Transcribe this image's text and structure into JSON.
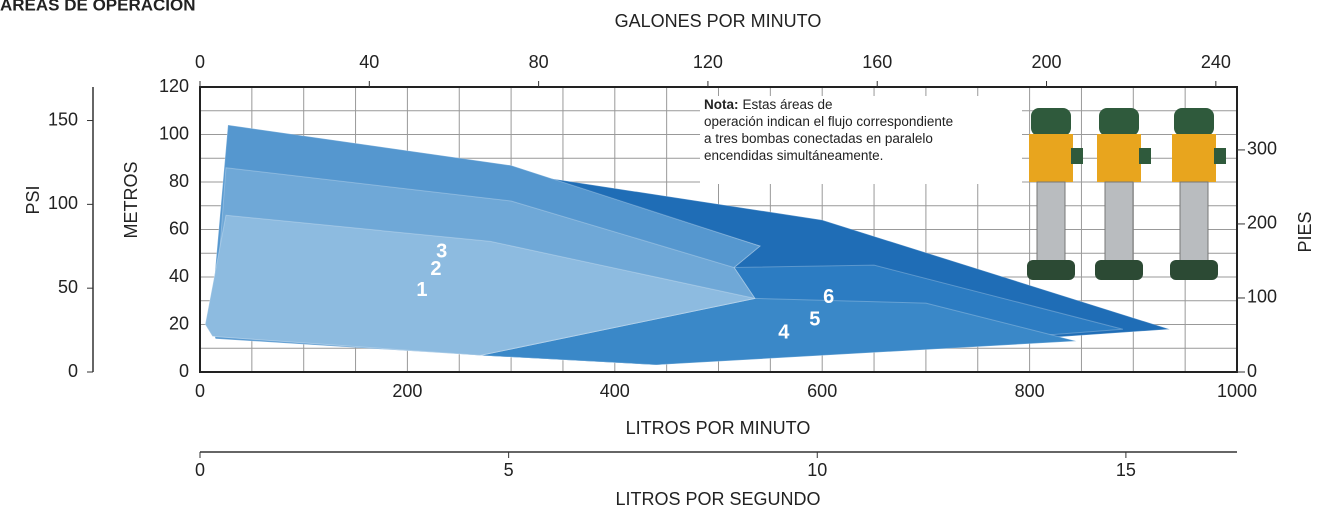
{
  "chart_data": {
    "type": "area",
    "title": "ÁREAS DE OPERACIÓN",
    "xlabel": "LITROS POR MINUTO",
    "ylabel": "METROS",
    "xlim": [
      0,
      1000
    ],
    "ylim": [
      0,
      120
    ],
    "xticks": [
      0,
      200,
      400,
      600,
      800,
      1000
    ],
    "yticks": [
      0,
      20,
      40,
      60,
      80,
      100,
      120
    ],
    "xminor": [
      50,
      100,
      150,
      250,
      300,
      350,
      450,
      500,
      550,
      650,
      700,
      750,
      850,
      900,
      950
    ],
    "yminor": [
      10,
      30,
      50,
      70,
      90,
      110
    ],
    "grid": true,
    "top_axis": {
      "label": "GALONES POR MINUTO",
      "lim": [
        0,
        245
      ],
      "ticks": [
        0,
        40,
        80,
        120,
        160,
        200,
        240
      ]
    },
    "bottom2_axis": {
      "label": "LITROS POR SEGUNDO",
      "lim": [
        0,
        16.8
      ],
      "ticks": [
        0,
        5,
        10,
        15
      ]
    },
    "left2_axis": {
      "label": "PSI",
      "lim": [
        0,
        170
      ],
      "ticks": [
        0,
        50,
        100,
        150
      ]
    },
    "right_axis": {
      "label": "PIES",
      "lim": [
        0,
        385
      ],
      "ticks": [
        0,
        100,
        200,
        300
      ]
    },
    "note": {
      "title": "Nota:",
      "lines": [
        "Estas áreas de",
        "operación indican el flujo correspondiente",
        "a tres bombas conectadas en paralelo",
        "encendidas simultáneamente."
      ]
    },
    "series": [
      {
        "name": "6",
        "color": "#1f6db6",
        "x": [
          330,
          600,
          935,
          440,
          270,
          535,
          515,
          540
        ],
        "y": [
          82,
          64,
          18,
          3,
          7,
          31,
          44,
          53
        ]
      },
      {
        "name": "5",
        "color": "#2c7cc2",
        "x": [
          515,
          650,
          890,
          440,
          270,
          535
        ],
        "y": [
          44,
          45,
          18,
          3,
          7,
          31
        ]
      },
      {
        "name": "4",
        "color": "#3a88c8",
        "x": [
          535,
          700,
          845,
          440,
          270
        ],
        "y": [
          31,
          29,
          13,
          3,
          7
        ]
      },
      {
        "name": "3",
        "color": "#5597cf",
        "x": [
          27,
          300,
          540,
          515,
          535,
          270,
          15,
          10
        ],
        "y": [
          104,
          87,
          53,
          44,
          31,
          7,
          14,
          20
        ]
      },
      {
        "name": "2",
        "color": "#6fa8d7",
        "x": [
          25,
          300,
          515,
          535,
          270,
          13
        ],
        "y": [
          86,
          72,
          44,
          31,
          7,
          15
        ]
      },
      {
        "name": "1",
        "color": "#8dbbe0",
        "x": [
          25,
          280,
          535,
          270,
          12,
          5
        ],
        "y": [
          66,
          55,
          31,
          7,
          15,
          20
        ]
      }
    ]
  }
}
